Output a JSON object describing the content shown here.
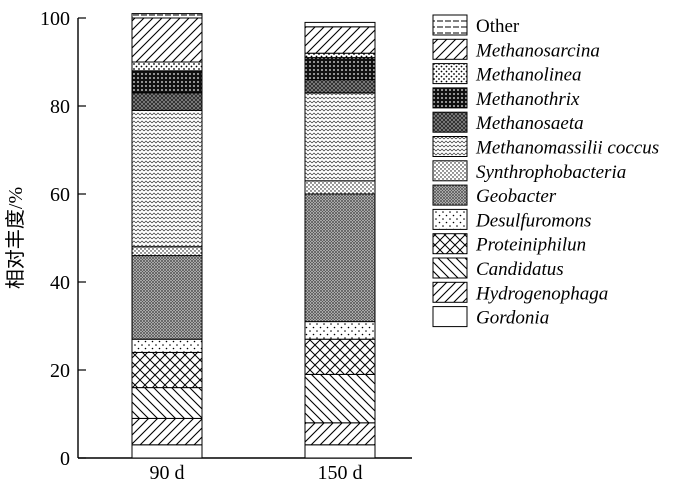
{
  "chart_data": {
    "type": "bar",
    "stacked": true,
    "title": "",
    "xlabel": "",
    "ylabel": "相对丰度/%",
    "ylim": [
      0,
      100
    ],
    "yticks": [
      "0",
      "20",
      "40",
      "60",
      "80",
      "100"
    ],
    "categories": [
      "90 d",
      "150 d"
    ],
    "legend_position": "right",
    "grid": false,
    "series": [
      {
        "name": "Gordonia",
        "italic": true,
        "pattern": "blank",
        "values": [
          3,
          3
        ]
      },
      {
        "name": "Hydrogenophaga",
        "italic": true,
        "pattern": "diag-right",
        "values": [
          6,
          5
        ]
      },
      {
        "name": "Candidatus",
        "italic": true,
        "pattern": "diag-left",
        "values": [
          7,
          11
        ]
      },
      {
        "name": "Proteiniphilun",
        "italic": true,
        "pattern": "crosshatch",
        "values": [
          8,
          8
        ]
      },
      {
        "name": "Desulfuromons",
        "italic": true,
        "pattern": "sparse-dots",
        "values": [
          3,
          4
        ]
      },
      {
        "name": "Geobacter",
        "italic": true,
        "pattern": "dense-grid",
        "values": [
          19,
          29
        ]
      },
      {
        "name": "Synthrophobacteria",
        "italic": true,
        "pattern": "fine-dots",
        "values": [
          2,
          3
        ]
      },
      {
        "name": "Methanomassilii coccus",
        "italic": true,
        "pattern": "wave",
        "values": [
          31,
          20
        ]
      },
      {
        "name": "Methanosaeta",
        "italic": true,
        "pattern": "dark-grid",
        "values": [
          4,
          3
        ]
      },
      {
        "name": "Methanothrix",
        "italic": true,
        "pattern": "black-grid",
        "values": [
          5,
          5
        ]
      },
      {
        "name": "Methanolinea",
        "italic": true,
        "pattern": "dots",
        "values": [
          2,
          1
        ]
      },
      {
        "name": "Methanosarcina",
        "italic": true,
        "pattern": "diag-right",
        "values": [
          10,
          6
        ]
      },
      {
        "name": "Other",
        "italic": false,
        "pattern": "dashed",
        "values": [
          1,
          1
        ]
      }
    ]
  }
}
